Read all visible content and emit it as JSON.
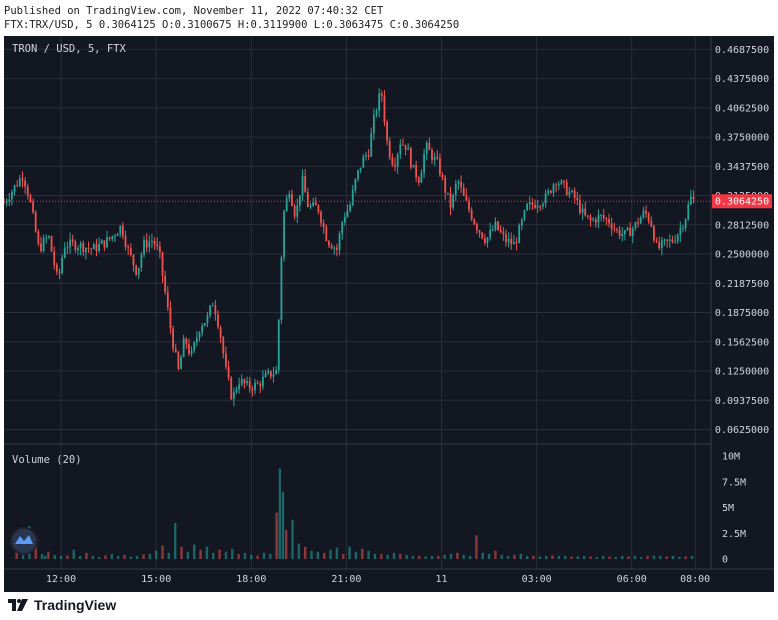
{
  "header": {
    "published": "Published on TradingView.com, November 11, 2022 07:40:32 CET",
    "ohlc": "FTX:TRX/USD, 5 0.3064125 O:0.3100675 H:0.3119900 L:0.3063475 C:0.3064250"
  },
  "chart": {
    "symbol_label": "TRON / USD, 5, FTX",
    "volume_label": "Volume (20)",
    "last_price_label": "0.3064250"
  },
  "footer": {
    "brand": "TradingView"
  },
  "colors": {
    "bg": "#131722",
    "up": "#26a69a",
    "down": "#ef5350",
    "grid": "#2a2e39",
    "text": "#d1d4dc",
    "last": "#f23645"
  },
  "chart_data": {
    "type": "candlestick",
    "price_ticks": [
      "0.4687500",
      "0.4375000",
      "0.4062500",
      "0.3750000",
      "0.3437500",
      "0.3125000",
      "0.2812500",
      "0.2500000",
      "0.2187500",
      "0.1875000",
      "0.1562500",
      "0.1250000",
      "0.0937500",
      "0.0625000"
    ],
    "price_tick_values": [
      0.46875,
      0.4375,
      0.40625,
      0.375,
      0.34375,
      0.3125,
      0.28125,
      0.25,
      0.21875,
      0.1875,
      0.15625,
      0.125,
      0.09375,
      0.0625
    ],
    "volume_ticks": [
      "10M",
      "7.5M",
      "5M",
      "2.5M",
      "0"
    ],
    "volume_tick_values": [
      10000000,
      7500000,
      5000000,
      2500000,
      0
    ],
    "x_ticks": [
      "12:00",
      "15:00",
      "18:00",
      "21:00",
      "11",
      "03:00",
      "06:00",
      "08:00"
    ],
    "x_tick_hours": [
      12,
      15,
      18,
      21,
      24,
      27,
      30,
      32
    ],
    "x_range_hours": [
      10.2,
      32.5
    ],
    "price_range": [
      0.047,
      0.483
    ],
    "volume_range": [
      0,
      10000000
    ],
    "last_price": 0.306425,
    "path_points": [
      [
        10.2,
        0.305
      ],
      [
        10.5,
        0.32
      ],
      [
        10.8,
        0.335
      ],
      [
        11.0,
        0.31
      ],
      [
        11.3,
        0.255
      ],
      [
        11.6,
        0.27
      ],
      [
        11.9,
        0.22
      ],
      [
        12.1,
        0.26
      ],
      [
        12.5,
        0.26
      ],
      [
        13.0,
        0.255
      ],
      [
        13.5,
        0.265
      ],
      [
        13.9,
        0.28
      ],
      [
        14.1,
        0.255
      ],
      [
        14.4,
        0.23
      ],
      [
        14.6,
        0.26
      ],
      [
        14.9,
        0.265
      ],
      [
        15.1,
        0.25
      ],
      [
        15.3,
        0.205
      ],
      [
        15.5,
        0.16
      ],
      [
        15.7,
        0.125
      ],
      [
        15.9,
        0.16
      ],
      [
        16.1,
        0.14
      ],
      [
        16.4,
        0.175
      ],
      [
        16.6,
        0.18
      ],
      [
        16.8,
        0.2
      ],
      [
        17.0,
        0.17
      ],
      [
        17.2,
        0.125
      ],
      [
        17.4,
        0.095
      ],
      [
        17.6,
        0.115
      ],
      [
        17.9,
        0.108
      ],
      [
        18.2,
        0.11
      ],
      [
        18.5,
        0.12
      ],
      [
        18.8,
        0.125
      ],
      [
        19.0,
        0.29
      ],
      [
        19.2,
        0.32
      ],
      [
        19.4,
        0.29
      ],
      [
        19.6,
        0.33
      ],
      [
        19.8,
        0.3
      ],
      [
        20.1,
        0.3
      ],
      [
        20.4,
        0.265
      ],
      [
        20.7,
        0.255
      ],
      [
        20.9,
        0.29
      ],
      [
        21.1,
        0.3
      ],
      [
        21.3,
        0.33
      ],
      [
        21.5,
        0.35
      ],
      [
        21.7,
        0.36
      ],
      [
        21.9,
        0.4
      ],
      [
        22.1,
        0.425
      ],
      [
        22.3,
        0.365
      ],
      [
        22.5,
        0.345
      ],
      [
        22.7,
        0.37
      ],
      [
        22.9,
        0.365
      ],
      [
        23.1,
        0.34
      ],
      [
        23.3,
        0.33
      ],
      [
        23.5,
        0.365
      ],
      [
        23.7,
        0.355
      ],
      [
        23.9,
        0.345
      ],
      [
        24.1,
        0.32
      ],
      [
        24.3,
        0.3
      ],
      [
        24.5,
        0.33
      ],
      [
        24.7,
        0.31
      ],
      [
        24.9,
        0.295
      ],
      [
        25.1,
        0.28
      ],
      [
        25.4,
        0.265
      ],
      [
        25.7,
        0.28
      ],
      [
        26.0,
        0.265
      ],
      [
        26.3,
        0.26
      ],
      [
        26.5,
        0.28
      ],
      [
        26.7,
        0.3
      ],
      [
        27.0,
        0.305
      ],
      [
        27.3,
        0.31
      ],
      [
        27.6,
        0.33
      ],
      [
        27.9,
        0.32
      ],
      [
        28.2,
        0.31
      ],
      [
        28.5,
        0.29
      ],
      [
        28.7,
        0.285
      ],
      [
        29.0,
        0.29
      ],
      [
        29.3,
        0.285
      ],
      [
        29.5,
        0.275
      ],
      [
        29.8,
        0.27
      ],
      [
        30.1,
        0.28
      ],
      [
        30.4,
        0.295
      ],
      [
        30.6,
        0.285
      ],
      [
        30.8,
        0.255
      ],
      [
        31.0,
        0.26
      ],
      [
        31.3,
        0.265
      ],
      [
        31.5,
        0.275
      ],
      [
        31.7,
        0.29
      ],
      [
        31.85,
        0.31
      ],
      [
        32.0,
        0.306
      ]
    ],
    "volume_series": [
      {
        "hours": [
          10.6,
          10.8,
          11.0,
          11.2,
          11.4,
          11.5,
          11.6,
          11.8,
          12.0,
          12.2,
          12.4,
          12.6,
          12.8,
          13.0,
          13.2,
          13.4,
          13.6,
          13.8,
          14.0,
          14.2,
          14.4,
          14.6,
          14.8,
          15.0,
          15.2,
          15.4,
          15.6,
          15.8,
          16.0,
          16.2,
          16.4,
          16.6,
          16.8,
          17.0,
          17.2,
          17.4,
          17.6,
          17.8,
          18.0,
          18.2,
          18.4,
          18.6,
          18.8,
          18.9,
          19.0,
          19.1,
          19.3,
          19.5,
          19.7,
          19.9,
          20.1,
          20.3,
          20.5,
          20.7,
          20.9,
          21.1,
          21.3,
          21.5,
          21.7,
          21.9,
          22.1,
          22.3,
          22.5,
          22.7,
          22.9,
          23.1,
          23.3,
          23.5,
          23.7,
          23.9,
          24.1,
          24.3,
          24.5,
          24.7,
          24.9,
          25.1,
          25.3,
          25.5,
          25.7,
          25.9,
          26.1,
          26.3,
          26.5,
          26.7,
          26.9,
          27.1,
          27.3,
          27.5,
          27.7,
          27.9,
          28.1,
          28.3,
          28.5,
          28.7,
          28.9,
          29.1,
          29.3,
          29.5,
          29.7,
          29.9,
          30.1,
          30.3,
          30.5,
          30.7,
          30.9,
          31.1,
          31.3,
          31.5,
          31.7,
          31.9
        ],
        "values": [
          1500000,
          600000,
          3200000,
          1200000,
          500000,
          300000,
          700000,
          400000,
          300000,
          350000,
          900000,
          300000,
          600000,
          300000,
          200000,
          350000,
          500000,
          300000,
          400000,
          250000,
          300000,
          450000,
          500000,
          800000,
          1300000,
          600000,
          3500000,
          1200000,
          700000,
          1400000,
          900000,
          1200000,
          600000,
          900000,
          700000,
          1000000,
          500000,
          600000,
          400000,
          350000,
          600000,
          500000,
          4500000,
          8800000,
          6500000,
          2800000,
          3800000,
          1500000,
          1200000,
          800000,
          700000,
          600000,
          900000,
          1100000,
          500000,
          1200000,
          700000,
          1000000,
          800000,
          500000,
          500000,
          400000,
          600000,
          500000,
          400000,
          300000,
          300000,
          250000,
          300000,
          300000,
          400000,
          500000,
          600000,
          400000,
          300000,
          2300000,
          600000,
          500000,
          800000,
          400000,
          300000,
          400000,
          500000,
          300000,
          300000,
          250000,
          300000,
          350000,
          300000,
          300000,
          250000,
          250000,
          300000,
          250000,
          200000,
          300000,
          250000,
          200000,
          300000,
          250000,
          300000,
          200000,
          300000,
          350000,
          300000,
          250000,
          300000,
          200000,
          250000,
          300000
        ]
      }
    ]
  }
}
